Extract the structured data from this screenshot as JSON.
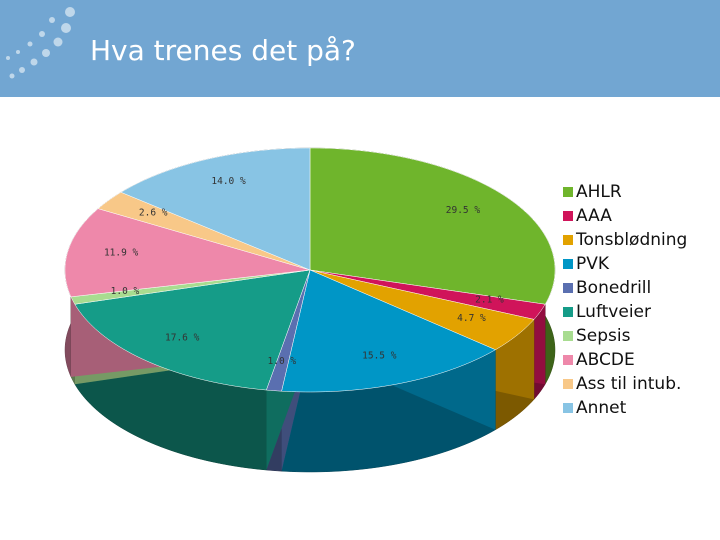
{
  "chart_data": {
    "type": "pie3d",
    "title": "Hva trenes det på?",
    "categories": [
      "AHLR",
      "AAA",
      "Tonsblødning",
      "PVK",
      "Bonedrill",
      "Luftveier",
      "Sepsis",
      "ABCDE",
      "Ass til intub.",
      "Annet"
    ],
    "values": [
      29.5,
      2.1,
      4.7,
      15.5,
      1.0,
      17.6,
      1.0,
      11.9,
      2.6,
      14.0
    ],
    "value_labels": [
      "29.5 %",
      "2.1 %",
      "4.7 %",
      "15.5 %",
      "1.0 %",
      "17.6 %",
      "1.0 %",
      "11.9 %",
      "2.6 %",
      "14.0 %"
    ],
    "colors": [
      "#6fb52c",
      "#d0145a",
      "#e2a200",
      "#0096c6",
      "#5a6fb0",
      "#159c88",
      "#a8dc90",
      "#ee88aa",
      "#f8c888",
      "#88c4e4"
    ],
    "legend": "right"
  }
}
